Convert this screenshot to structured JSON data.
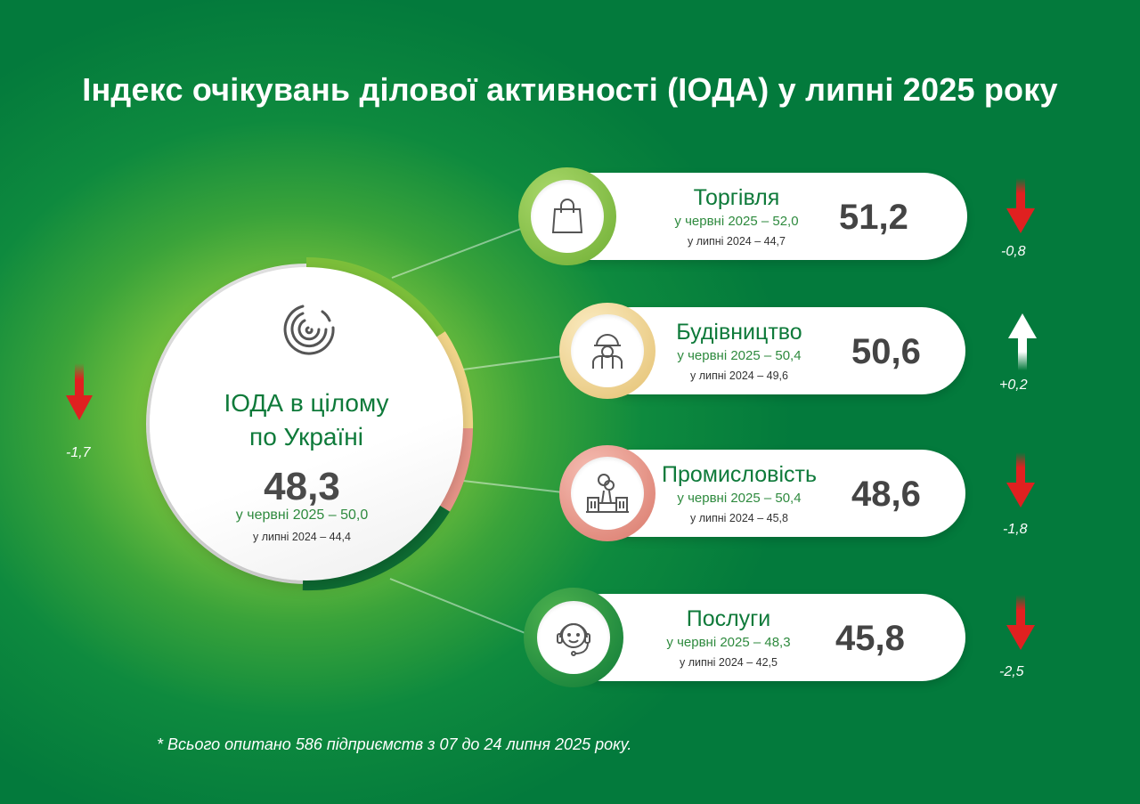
{
  "title": "Індекс очікувань ділової активності (ІОДА) у липні 2025 року",
  "overall": {
    "label_line1": "ІОДА в цілому",
    "label_line2": "по Україні",
    "value": "48,3",
    "prev_month": "у червні 2025 – 50,0",
    "prev_year": "у липні 2024 – 44,4",
    "change": "-1,7",
    "change_direction": "down",
    "icon": "ioda-logo-icon"
  },
  "sectors": [
    {
      "name": "Торгівля",
      "value": "51,2",
      "prev_month": "у червні 2025 – 52,0",
      "prev_year": "у липні 2024 – 44,7",
      "change": "-0,8",
      "change_direction": "down",
      "icon": "shopping-bag-icon",
      "color": "#8cc63f"
    },
    {
      "name": "Будівництво",
      "value": "50,6",
      "prev_month": "у червні 2025 – 50,4",
      "prev_year": "у липні 2024 – 49,6",
      "change": "+0,2",
      "change_direction": "up",
      "icon": "construction-worker-icon",
      "color": "#f2d58a"
    },
    {
      "name": "Промисловість",
      "value": "48,6",
      "prev_month": "у червні 2025 – 50,4",
      "prev_year": "у липні 2024 – 45,8",
      "change": "-1,8",
      "change_direction": "down",
      "icon": "factory-icon",
      "color": "#e9968a"
    },
    {
      "name": "Послуги",
      "value": "45,8",
      "prev_month": "у червні 2025 – 48,3",
      "prev_year": "у липні 2024 – 42,5",
      "change": "-2,5",
      "change_direction": "down",
      "icon": "support-headset-icon",
      "color": "#1f8a3e"
    }
  ],
  "colors": {
    "arrow_down": "#e02020",
    "arrow_up": "#ffffff",
    "text_green": "#0e7a3a"
  },
  "footnote": "* Всього опитано 586 підприємств з 07 до 24 липня 2025 року."
}
